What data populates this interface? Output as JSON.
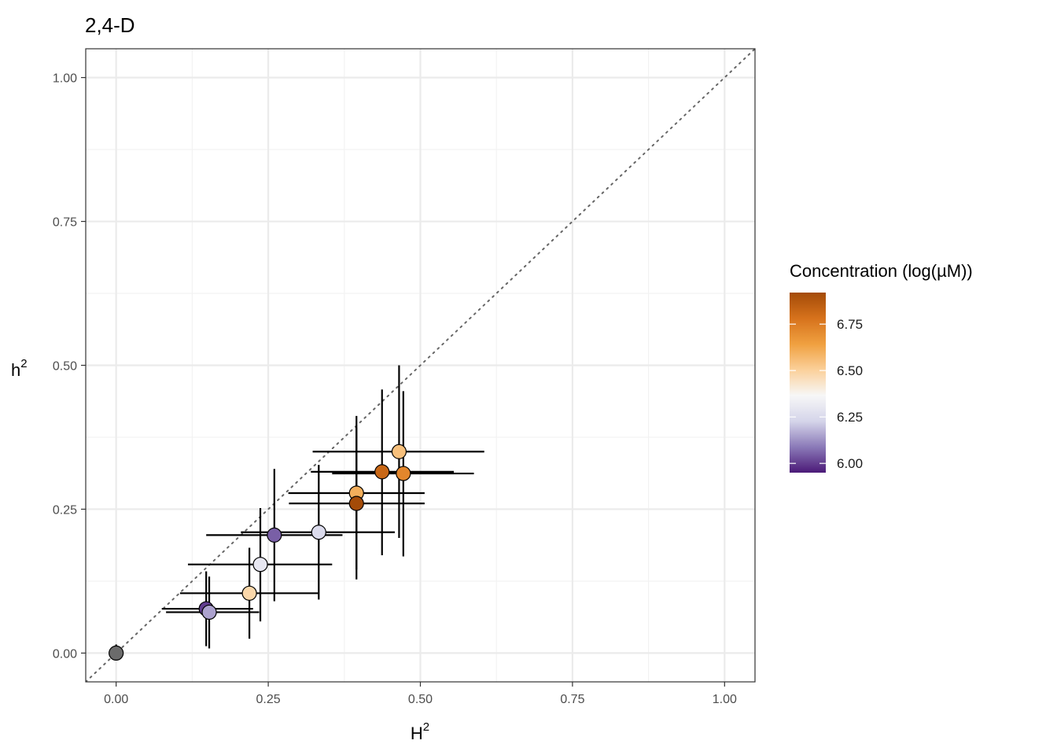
{
  "chart_data": {
    "type": "scatter",
    "title": "2,4-D",
    "xlabel": {
      "base": "H",
      "sup": "2"
    },
    "ylabel": {
      "base": "h",
      "sup": "2"
    },
    "xlim": [
      -0.05,
      1.05
    ],
    "ylim": [
      -0.05,
      1.05
    ],
    "x_ticks": [
      0,
      0.25,
      0.5,
      0.75,
      1
    ],
    "y_ticks": [
      0,
      0.25,
      0.5,
      0.75,
      1
    ],
    "x_tick_labels": [
      "0.00",
      "0.25",
      "0.50",
      "0.75",
      "1.00"
    ],
    "y_tick_labels": [
      "0.00",
      "0.25",
      "0.50",
      "0.75",
      "1.00"
    ],
    "grid": true,
    "reference_line": {
      "slope": 1,
      "intercept": 0,
      "style": "dotted",
      "color": "#666666"
    },
    "legend": {
      "title": "Concentration (log(µM))",
      "type": "colorbar",
      "placement": "right",
      "range": [
        5.95,
        6.92
      ],
      "breaks": [
        6.0,
        6.25,
        6.5,
        6.75
      ],
      "break_labels": [
        "6.00",
        "6.25",
        "6.50",
        "6.75"
      ],
      "colors": [
        "#4b1a78",
        "#8b7ab8",
        "#d5d5ea",
        "#f7f7f7",
        "#fbd09a",
        "#f0a040",
        "#d6721c",
        "#a44b08"
      ]
    },
    "na_color": "#6b6b6b",
    "points": [
      {
        "x": 0.0,
        "y": 0.0,
        "xmin": 0.0,
        "xmax": 0.0,
        "ymin": -0.01,
        "ymax": 0.015,
        "conc": null
      },
      {
        "x": 0.148,
        "y": 0.077,
        "xmin": 0.075,
        "xmax": 0.225,
        "ymin": 0.012,
        "ymax": 0.142,
        "conc": 6.0
      },
      {
        "x": 0.153,
        "y": 0.071,
        "xmin": 0.082,
        "xmax": 0.235,
        "ymin": 0.008,
        "ymax": 0.133,
        "conc": 6.15
      },
      {
        "x": 0.219,
        "y": 0.104,
        "xmin": 0.105,
        "xmax": 0.333,
        "ymin": 0.025,
        "ymax": 0.183,
        "conc": 6.48
      },
      {
        "x": 0.237,
        "y": 0.154,
        "xmin": 0.118,
        "xmax": 0.355,
        "ymin": 0.055,
        "ymax": 0.252,
        "conc": 6.3
      },
      {
        "x": 0.26,
        "y": 0.205,
        "xmin": 0.148,
        "xmax": 0.372,
        "ymin": 0.09,
        "ymax": 0.32,
        "conc": 6.05
      },
      {
        "x": 0.333,
        "y": 0.21,
        "xmin": 0.205,
        "xmax": 0.458,
        "ymin": 0.093,
        "ymax": 0.327,
        "conc": 6.25
      },
      {
        "x": 0.395,
        "y": 0.278,
        "xmin": 0.283,
        "xmax": 0.507,
        "ymin": 0.145,
        "ymax": 0.412,
        "conc": 6.6
      },
      {
        "x": 0.395,
        "y": 0.26,
        "xmin": 0.284,
        "xmax": 0.507,
        "ymin": 0.128,
        "ymax": 0.392,
        "conc": 6.92
      },
      {
        "x": 0.437,
        "y": 0.315,
        "xmin": 0.32,
        "xmax": 0.555,
        "ymin": 0.17,
        "ymax": 0.458,
        "conc": 6.82
      },
      {
        "x": 0.465,
        "y": 0.35,
        "xmin": 0.323,
        "xmax": 0.605,
        "ymin": 0.2,
        "ymax": 0.5,
        "conc": 6.55
      },
      {
        "x": 0.472,
        "y": 0.312,
        "xmin": 0.355,
        "xmax": 0.588,
        "ymin": 0.168,
        "ymax": 0.455,
        "conc": 6.72
      }
    ]
  }
}
